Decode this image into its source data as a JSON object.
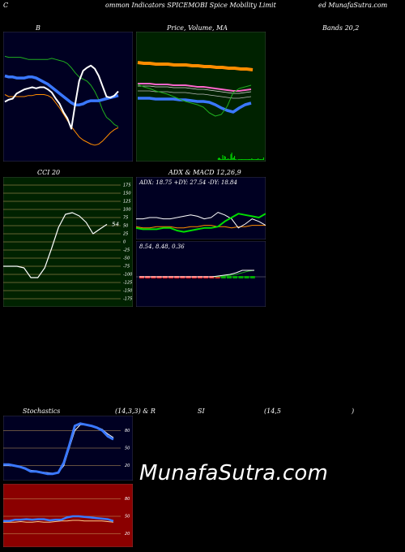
{
  "header": {
    "left": "C",
    "title_a": "ommon  Indicators SPICEMOBI Spice   Mobility Limit",
    "title_b": "ed MunafaSutra.com"
  },
  "row1": {
    "bands_label": "B",
    "price_label": "Price,   Volume,  MA",
    "bb_label": "Bands 20,2"
  },
  "row2": {
    "cci_label": "CCI 20",
    "adx_label": "ADX   & MACD 12,26,9",
    "adx_values": "ADX: 18.75  +DY: 27.54  -DY: 18.84",
    "macd_values": "8.54,   8.48,   0.36"
  },
  "row3": {
    "stoch_label": "Stochastics",
    "stoch_params": "(14,3,3) & R",
    "rsi_label": "SI",
    "rsi_params": "(14,5",
    "rsi_close": ")"
  },
  "watermark": "MunafaSutra.com",
  "colors": {
    "panel_bg": "#000022",
    "price_bg": "#002200",
    "cci_bg": "#002200",
    "rsi_bg": "#8b0000",
    "grid": "#c8a060",
    "blue": "#3a78ff",
    "orange": "#ff8c00",
    "green": "#1fae1f",
    "white": "#ffffff",
    "pink": "#ff66cc",
    "red": "#ff2222"
  },
  "chart_data": [
    {
      "type": "line",
      "name": "bollinger",
      "x": [
        1,
        2,
        3,
        4,
        5,
        6,
        7,
        8,
        9,
        10,
        11,
        12,
        13,
        14,
        15,
        16,
        17,
        18,
        19,
        20,
        21,
        22,
        23,
        24,
        25,
        26,
        27,
        28,
        29,
        30
      ],
      "series": [
        {
          "key": "upper",
          "values": [
            64,
            63,
            63,
            63,
            63,
            62,
            61,
            61,
            61,
            61,
            61,
            61,
            62,
            61,
            60,
            59,
            57,
            53,
            48,
            44,
            42,
            40,
            36,
            30,
            22,
            12,
            5,
            2,
            -2,
            -4
          ]
        },
        {
          "key": "middle",
          "values": [
            45,
            44,
            44,
            43,
            43,
            43,
            44,
            44,
            43,
            41,
            39,
            37,
            34,
            31,
            28,
            25,
            22,
            19,
            17,
            17,
            18,
            20,
            21,
            21,
            21,
            22,
            23,
            24,
            25,
            26
          ]
        },
        {
          "key": "lower",
          "values": [
            27,
            25,
            25,
            25,
            25,
            25,
            26,
            26,
            27,
            27,
            27,
            26,
            24,
            19,
            14,
            8,
            2,
            -4,
            -9,
            -14,
            -17,
            -19,
            -21,
            -22,
            -21,
            -18,
            -14,
            -10,
            -7,
            -5
          ]
        },
        {
          "key": "price",
          "values": [
            20,
            22,
            23,
            28,
            30,
            32,
            33,
            34,
            33,
            34,
            34,
            32,
            29,
            23,
            18,
            10,
            4,
            -6,
            18,
            40,
            50,
            53,
            55,
            52,
            45,
            35,
            25,
            24,
            26,
            30
          ]
        }
      ],
      "ylim": [
        -30,
        80
      ]
    },
    {
      "type": "line",
      "name": "price_ma_volume",
      "series": [
        {
          "key": "orange_ma",
          "values": [
            72,
            71,
            71,
            70,
            70,
            70,
            69,
            69,
            69,
            68,
            68,
            67,
            67,
            66,
            66,
            65,
            65,
            64,
            64,
            63
          ]
        },
        {
          "key": "pink_ma",
          "values": [
            46,
            46,
            46,
            45,
            45,
            45,
            44,
            44,
            44,
            43,
            42,
            42,
            41,
            40,
            39,
            38,
            37,
            37,
            38,
            39
          ]
        },
        {
          "key": "blue_ma",
          "values": [
            28,
            28,
            28,
            27,
            27,
            27,
            27,
            26,
            26,
            25,
            24,
            24,
            23,
            20,
            16,
            13,
            11,
            16,
            20,
            22
          ]
        },
        {
          "key": "price",
          "values": [
            45,
            42,
            40,
            37,
            35,
            33,
            30,
            27,
            24,
            22,
            20,
            17,
            10,
            6,
            8,
            18,
            35,
            40,
            42,
            44
          ]
        }
      ],
      "volume": [
        0,
        0,
        0,
        0,
        0,
        0,
        0,
        0,
        0,
        0,
        0,
        0,
        0,
        0,
        0,
        0,
        0,
        0,
        0,
        0,
        0,
        0,
        0,
        0,
        0,
        0,
        0,
        0,
        0,
        0,
        0,
        0,
        0,
        0,
        0,
        0,
        0,
        0,
        0,
        0,
        0,
        0,
        0,
        0,
        0,
        0,
        0,
        0,
        0,
        0,
        0,
        0,
        0,
        0,
        0,
        0,
        0,
        0,
        0,
        0,
        0,
        0,
        0,
        0,
        0,
        0,
        0,
        0,
        0,
        0,
        0,
        0,
        0,
        0,
        0,
        0,
        0,
        0,
        0,
        0,
        0,
        0,
        0,
        0,
        0,
        0,
        0,
        0,
        2,
        3,
        2,
        1,
        1,
        6,
        1,
        5,
        4,
        1,
        1,
        2,
        1,
        1,
        7,
        9,
        2,
        3,
        5,
        1,
        1,
        0,
        1,
        1,
        1,
        1,
        1,
        1,
        1,
        1,
        1,
        1,
        1,
        1,
        1,
        1,
        1,
        2,
        1,
        1,
        1,
        1,
        1,
        1,
        2,
        1,
        1,
        1,
        1,
        1,
        3
      ]
    },
    {
      "type": "line",
      "name": "cci",
      "ticks": [
        "175",
        "150",
        "125",
        "100",
        "75",
        "50",
        "25",
        "0",
        "-25",
        "-50",
        "-75",
        "-100",
        "-125",
        "-150",
        "-175"
      ],
      "series": [
        {
          "key": "cci",
          "values": [
            -75,
            -75,
            -75,
            -80,
            -110,
            -110,
            -80,
            -20,
            45,
            85,
            90,
            80,
            60,
            25,
            40,
            54
          ]
        }
      ],
      "last_label": "54",
      "ylim": [
        -190,
        190
      ]
    },
    {
      "type": "line",
      "name": "adx",
      "series": [
        {
          "key": "adx",
          "values": [
            18,
            17,
            17,
            18,
            18,
            18,
            17,
            17,
            18,
            18,
            19,
            19,
            18,
            18,
            17,
            18,
            18,
            19,
            19,
            19
          ]
        },
        {
          "key": "plus_di",
          "values": [
            17,
            16,
            16,
            16,
            17,
            17,
            15,
            14,
            15,
            16,
            17,
            17,
            18,
            22,
            25,
            28,
            27,
            26,
            25,
            28
          ]
        },
        {
          "key": "minus_di",
          "values": [
            24,
            24,
            25,
            25,
            24,
            24,
            25,
            26,
            27,
            26,
            24,
            25,
            29,
            27,
            24,
            17,
            20,
            24,
            22,
            19
          ]
        }
      ]
    },
    {
      "type": "line",
      "name": "macd",
      "series": [
        {
          "key": "macd",
          "values": [
            0,
            0,
            0,
            0,
            0,
            0,
            0,
            0,
            0,
            0,
            0,
            0,
            0,
            1,
            2,
            3,
            5,
            8,
            8,
            8
          ]
        },
        {
          "key": "signal",
          "values": [
            0,
            0,
            0,
            0,
            0,
            0,
            0,
            0,
            0,
            0,
            0,
            0,
            0,
            0,
            1,
            2,
            3,
            5,
            7,
            8
          ]
        }
      ]
    },
    {
      "type": "line",
      "name": "stochastics",
      "ticks": [
        "80",
        "50",
        "20"
      ],
      "series": [
        {
          "key": "k",
          "values": [
            22,
            22,
            20,
            18,
            15,
            10,
            10,
            8,
            6,
            6,
            8,
            25,
            55,
            88,
            92,
            90,
            88,
            85,
            80,
            70,
            65
          ]
        },
        {
          "key": "d",
          "values": [
            20,
            20,
            19,
            18,
            16,
            12,
            11,
            9,
            8,
            7,
            8,
            20,
            50,
            80,
            90,
            90,
            88,
            86,
            82,
            74,
            68
          ]
        }
      ],
      "ylim": [
        0,
        100
      ]
    },
    {
      "type": "line",
      "name": "rsi",
      "ticks": [
        "80",
        "50",
        "20"
      ],
      "series": [
        {
          "key": "rsi",
          "values": [
            42,
            42,
            44,
            44,
            45,
            44,
            45,
            45,
            43,
            44,
            44,
            48,
            50,
            50,
            49,
            48,
            47,
            46,
            45,
            42
          ]
        },
        {
          "key": "mfi",
          "values": [
            40,
            40,
            40,
            41,
            40,
            40,
            41,
            40,
            40,
            41,
            42,
            42,
            43,
            43,
            42,
            42,
            42,
            42,
            41,
            40
          ]
        }
      ],
      "ylim": [
        0,
        100
      ]
    }
  ]
}
